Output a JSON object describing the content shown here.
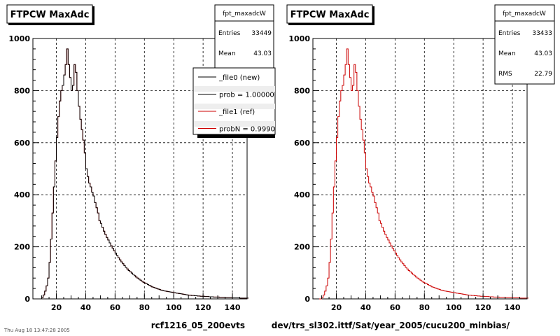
{
  "footer": "Thu Aug 18 13:47:28 2005",
  "panels": [
    {
      "title": "FTPCW MaxAdc",
      "xlabel": "rcf1216_05_200evts",
      "stats": {
        "name": "fpt_maxadcW",
        "rows": [
          {
            "label": "Entries",
            "value": "33449"
          },
          {
            "label": "Mean",
            "value": "43.03"
          }
        ]
      },
      "legend": [
        {
          "label": "_file0 (new)",
          "color": "#000000"
        },
        {
          "label": "prob = 1.000000",
          "color": "#000000"
        },
        {
          "label": "_file1 (ref)",
          "color": "#cc0000"
        },
        {
          "label": "probN = 0.999021",
          "color": "#cc0000"
        }
      ]
    },
    {
      "title": "FTPCW MaxAdc",
      "xlabel": "dev/trs_sl302.ittf/Sat/year_2005/cucu200_minbias/",
      "stats": {
        "name": "fpt_maxadcW",
        "rows": [
          {
            "label": "Entries",
            "value": "33433"
          },
          {
            "label": "Mean",
            "value": "43.03"
          },
          {
            "label": "RMS",
            "value": "22.79"
          }
        ]
      },
      "legend": []
    }
  ],
  "chart_data": [
    {
      "type": "histogram",
      "title": "FTPCW MaxAdc",
      "xlabel": "rcf1216_05_200evts",
      "ylabel": "",
      "xlim": [
        4,
        150
      ],
      "ylim": [
        0,
        1000
      ],
      "xticks": [
        20,
        40,
        60,
        80,
        100,
        120,
        140
      ],
      "yticks": [
        0,
        200,
        400,
        600,
        800,
        1000
      ],
      "grid": true,
      "legend_position": "top-right",
      "bin_width": 1,
      "x_start": 10,
      "series": [
        {
          "name": "_file0 (new)",
          "color": "#000000"
        },
        {
          "name": "_file1 (ref)",
          "color": "#cc0000"
        }
      ],
      "values": [
        5,
        15,
        30,
        50,
        80,
        140,
        230,
        330,
        430,
        530,
        620,
        700,
        760,
        800,
        820,
        860,
        900,
        960,
        900,
        850,
        800,
        820,
        900,
        870,
        800,
        740,
        690,
        650,
        610,
        560,
        500,
        470,
        445,
        430,
        410,
        395,
        370,
        350,
        330,
        300,
        290,
        275,
        260,
        248,
        236,
        226,
        215,
        204,
        195,
        185,
        176,
        167,
        158,
        150,
        142,
        135,
        128,
        121,
        115,
        109,
        104,
        99,
        94,
        89,
        84,
        80,
        76,
        72,
        68,
        64,
        61,
        58,
        55,
        52,
        49,
        46,
        44,
        42,
        40,
        38,
        36,
        34,
        32,
        31,
        30,
        29,
        28,
        27,
        26,
        25,
        24,
        23,
        22,
        21,
        20,
        19,
        18,
        17,
        16,
        15,
        14,
        14,
        13,
        13,
        12,
        12,
        11,
        11,
        10,
        10,
        10,
        9,
        9,
        9,
        8,
        8,
        8,
        7,
        7,
        7,
        7,
        6,
        6,
        6,
        6,
        5,
        5,
        5,
        5,
        5,
        4,
        4,
        4,
        4,
        4,
        3,
        3,
        3,
        3,
        3,
        3
      ]
    },
    {
      "type": "histogram",
      "title": "FTPCW MaxAdc",
      "xlabel": "dev/trs_sl302.ittf/Sat/year_2005/cucu200_minbias/",
      "ylabel": "",
      "xlim": [
        4,
        150
      ],
      "ylim": [
        0,
        1000
      ],
      "xticks": [
        20,
        40,
        60,
        80,
        100,
        120,
        140
      ],
      "yticks": [
        0,
        200,
        400,
        600,
        800,
        1000
      ],
      "grid": true,
      "bin_width": 1,
      "x_start": 10,
      "series": [
        {
          "name": "fpt_maxadcW",
          "color": "#cc0000"
        }
      ],
      "values": [
        5,
        15,
        30,
        50,
        80,
        140,
        230,
        330,
        430,
        530,
        620,
        700,
        760,
        800,
        820,
        860,
        900,
        960,
        900,
        850,
        800,
        820,
        900,
        870,
        800,
        740,
        690,
        650,
        610,
        560,
        500,
        470,
        445,
        430,
        410,
        395,
        370,
        350,
        330,
        300,
        290,
        275,
        260,
        248,
        236,
        226,
        215,
        204,
        195,
        185,
        176,
        167,
        158,
        150,
        142,
        135,
        128,
        121,
        115,
        109,
        104,
        99,
        94,
        89,
        84,
        80,
        76,
        72,
        68,
        64,
        61,
        58,
        55,
        52,
        49,
        46,
        44,
        42,
        40,
        38,
        36,
        34,
        32,
        31,
        30,
        29,
        28,
        27,
        26,
        25,
        24,
        23,
        22,
        21,
        20,
        19,
        18,
        17,
        16,
        15,
        14,
        14,
        13,
        13,
        12,
        12,
        11,
        11,
        10,
        10,
        10,
        9,
        9,
        9,
        8,
        8,
        8,
        7,
        7,
        7,
        7,
        6,
        6,
        6,
        6,
        5,
        5,
        5,
        5,
        5,
        4,
        4,
        4,
        4,
        4,
        3,
        3,
        3,
        3,
        3,
        3
      ]
    }
  ]
}
